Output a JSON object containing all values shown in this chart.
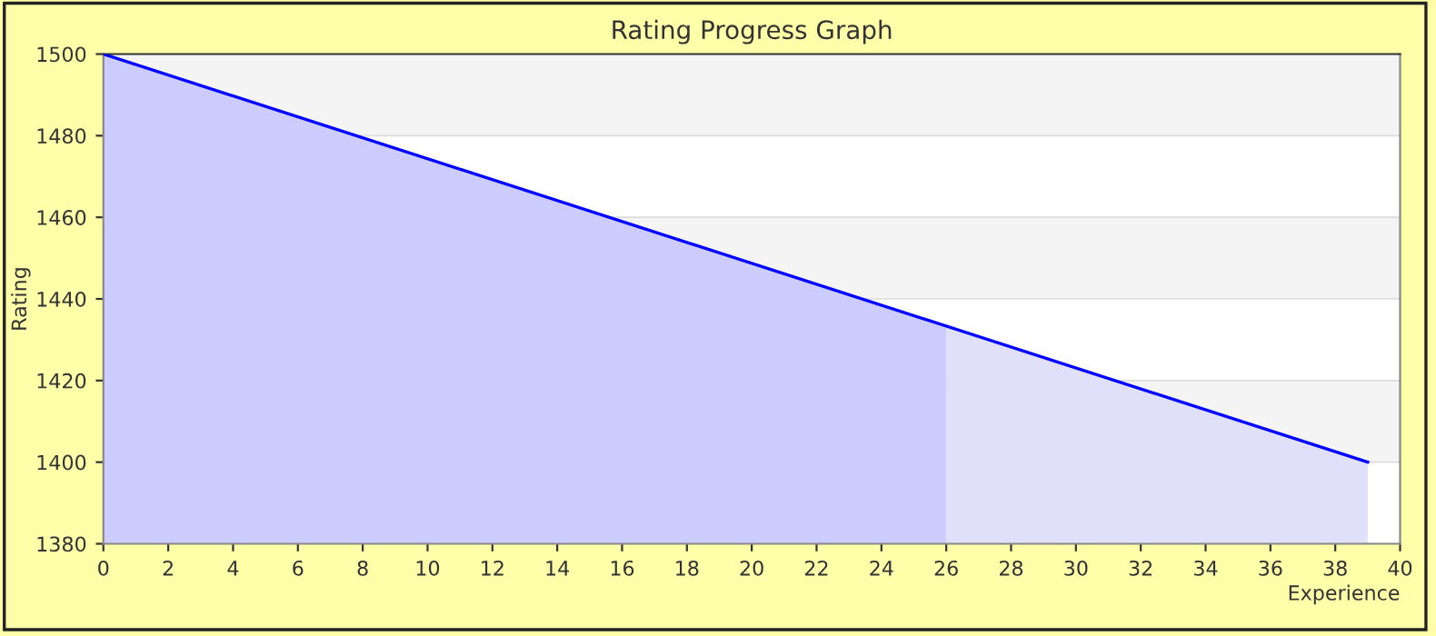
{
  "chart_data": {
    "type": "area",
    "title": "Rating Progress Graph",
    "xlabel": "Experience",
    "ylabel": "Rating",
    "series": [
      {
        "color": "#ccccff",
        "x": [
          0,
          26
        ],
        "values": [
          1500,
          1433
        ]
      },
      {
        "color": "#e0e0fb",
        "x": [
          26,
          39
        ],
        "values": [
          1433,
          1400
        ]
      },
      {
        "type": "line",
        "color": "#0000ff",
        "x": [
          0,
          39
        ],
        "values": [
          1500,
          1400
        ]
      }
    ],
    "bands": [
      {
        "axis": "y",
        "from": 1480,
        "to": 1500,
        "color": "#f4f4f4"
      },
      {
        "axis": "y",
        "from": 1440,
        "to": 1460,
        "color": "#f4f4f4"
      },
      {
        "axis": "y",
        "from": 1400,
        "to": 1420,
        "color": "#f4f4f4"
      }
    ],
    "grid": "y",
    "xlim": [
      0,
      40
    ],
    "xticks": [
      0,
      2,
      4,
      6,
      8,
      10,
      12,
      14,
      16,
      18,
      20,
      22,
      24,
      26,
      28,
      30,
      32,
      34,
      36,
      38,
      40
    ],
    "ylim": [
      1380,
      1500
    ],
    "yticks": [
      1380,
      1400,
      1420,
      1440,
      1460,
      1480,
      1500
    ]
  }
}
